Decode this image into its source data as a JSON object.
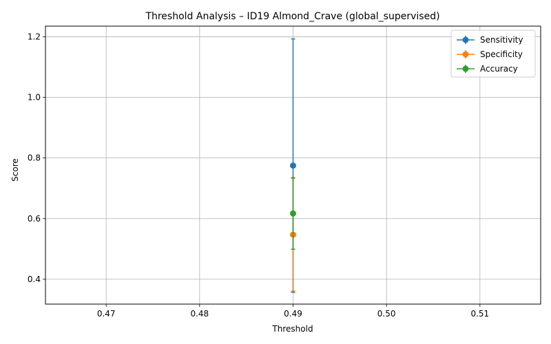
{
  "chart_data": {
    "type": "scatter",
    "title": "Threshold Analysis – ID19 Almond_Crave (global_supervised)",
    "xlabel": "Threshold",
    "ylabel": "Score",
    "xlim": [
      0.4635,
      0.5165
    ],
    "ylim": [
      0.318,
      1.235
    ],
    "xticks": [
      "0.47",
      "0.48",
      "0.49",
      "0.50",
      "0.51"
    ],
    "xtick_values": [
      0.47,
      0.48,
      0.49,
      0.5,
      0.51
    ],
    "yticks": [
      "0.4",
      "0.6",
      "0.8",
      "1.0",
      "1.2"
    ],
    "ytick_values": [
      0.4,
      0.6,
      0.8,
      1.0,
      1.2
    ],
    "grid": true,
    "legend": "top-right",
    "series": [
      {
        "name": "Sensitivity",
        "color": "#1f77b4",
        "x": [
          0.49
        ],
        "y": [
          0.775
        ],
        "err": [
          0.418
        ]
      },
      {
        "name": "Specificity",
        "color": "#ff7f0e",
        "x": [
          0.49
        ],
        "y": [
          0.547
        ],
        "err": [
          0.186
        ]
      },
      {
        "name": "Accuracy",
        "color": "#2ca02c",
        "x": [
          0.49
        ],
        "y": [
          0.617
        ],
        "err": [
          0.118
        ]
      }
    ]
  }
}
